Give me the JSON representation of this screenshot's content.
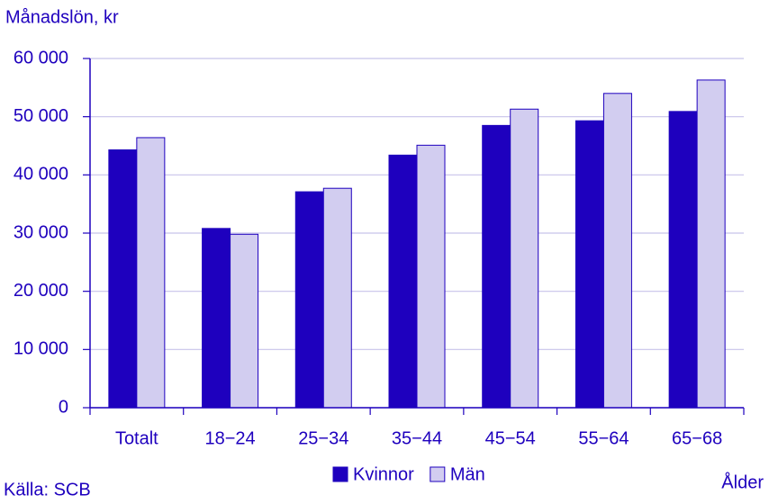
{
  "chart_data": {
    "type": "bar",
    "y_label": "Månadslön, kr",
    "x_label": "Ålder",
    "source": "Källa: SCB",
    "categories": [
      "Totalt",
      "18−24",
      "25−34",
      "35−44",
      "45−54",
      "55−64",
      "65−68"
    ],
    "series": [
      {
        "name": "Kvinnor",
        "color": "#1e00be",
        "values": [
          44300,
          30800,
          37100,
          43400,
          48500,
          49300,
          50900
        ]
      },
      {
        "name": "Män",
        "color": "#d2cdf0",
        "values": [
          46400,
          29800,
          37700,
          45100,
          51300,
          54000,
          56300
        ]
      }
    ],
    "ylim": [
      0,
      60000
    ],
    "yticks": [
      0,
      {
        "value": 10000,
        "label": "10 000"
      },
      {
        "value": 20000,
        "label": "20 000"
      },
      {
        "value": 30000,
        "label": "30 000"
      },
      {
        "value": 40000,
        "label": "40 000"
      },
      {
        "value": 50000,
        "label": "50 000"
      },
      {
        "value": 60000,
        "label": "60 000"
      }
    ],
    "grid": true,
    "legend": "bottom"
  }
}
